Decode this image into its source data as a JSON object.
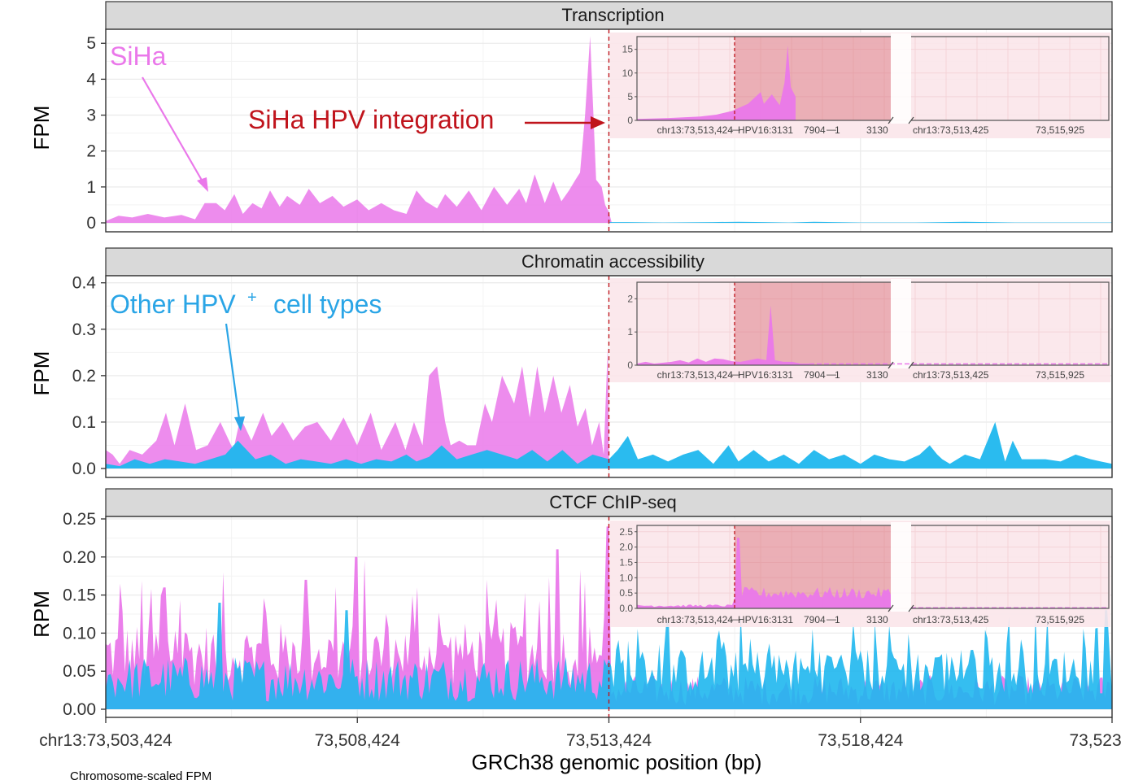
{
  "chart_data": {
    "type": "area",
    "x_axis": {
      "label": "GRCh38 genomic position (bp)",
      "range": [
        73503424,
        73523424
      ],
      "ticks": [
        73503424,
        73508424,
        73513424,
        73518424,
        73523424
      ],
      "tick_labels": [
        "chr13:73,503,424",
        "73,508,424",
        "73,513,424",
        "73,518,424",
        "73,523,424"
      ]
    },
    "integration_site": 73513424,
    "colors": {
      "SiHa": "#ea78ea",
      "Other": "#1fb7ee",
      "integration": "#c0141c",
      "inset_band": "#d86a76"
    },
    "groups": [
      "SiHa",
      "Other HPV+ cell types"
    ],
    "panels": [
      {
        "id": "transcription",
        "title": "Transcription",
        "ylabel": "FPM",
        "ylim": [
          0,
          5.3
        ],
        "yticks": [
          0,
          1,
          2,
          3,
          4,
          5
        ],
        "ytick_labels": [
          "0",
          "1",
          "2",
          "3",
          "4",
          "5"
        ],
        "annotation_siha": "SiHa",
        "annotation_integration": "SiHa HPV integration",
        "series": [
          {
            "name": "SiHa",
            "color": "#ea78ea",
            "x": [
              73503424,
              73503680,
              73503950,
              73504260,
              73504590,
              73504930,
              73505200,
              73505390,
              73505620,
              73505790,
              73505980,
              73506150,
              73506340,
              73506520,
              73506690,
              73506880,
              73507030,
              73507280,
              73507460,
              73507680,
              73507930,
              73508150,
              73508420,
              73508650,
              73508900,
              73509150,
              73509400,
              73509600,
              73509780,
              73510010,
              73510170,
              73510400,
              73510640,
              73510890,
              73511140,
              73511400,
              73511640,
              73511780,
              73511950,
              73512150,
              73512320,
              73512480,
              73512630,
              73512760,
              73512850,
              73512950,
              73513050,
              73513170,
              73513280,
              73513350,
              73513424,
              73513480
            ],
            "y": [
              0.05,
              0.2,
              0.15,
              0.25,
              0.15,
              0.22,
              0.1,
              0.55,
              0.55,
              0.35,
              0.8,
              0.25,
              0.55,
              0.4,
              0.9,
              0.45,
              0.75,
              0.5,
              0.95,
              0.55,
              0.75,
              0.45,
              0.65,
              0.35,
              0.55,
              0.35,
              0.25,
              0.9,
              0.6,
              0.4,
              0.8,
              0.45,
              0.9,
              0.35,
              1.0,
              0.5,
              0.95,
              0.55,
              1.35,
              0.55,
              1.15,
              0.6,
              0.9,
              1.2,
              1.4,
              3.0,
              5.2,
              1.2,
              1.0,
              0.5,
              0.3,
              0
            ]
          },
          {
            "name": "Other HPV+ cell types",
            "color": "#1fb7ee",
            "x": [
              73513424,
              73513800,
              73514500,
              73515500,
              73516000,
              73516500,
              73517000,
              73517500,
              73518424,
              73519500,
              73520500,
              73521500,
              73522500,
              73523424
            ],
            "y": [
              0.02,
              0.02,
              0.01,
              0.02,
              0.03,
              0.02,
              0.01,
              0.03,
              0.01,
              0.01,
              0.03,
              0.01,
              0.01,
              0.01
            ]
          }
        ],
        "inset": {
          "yticks": [
            0,
            5,
            10,
            15
          ],
          "ytick_labels": [
            "0",
            "5",
            "10",
            "15"
          ],
          "ylim": [
            0,
            17
          ],
          "xlabels": [
            "chr13:73,513,424",
            "HPV16:3131",
            "7904",
            "1",
            "3130",
            "chr13:73,513,425",
            "73,515,925"
          ],
          "siha_profile": [
            [
              0.0,
              0.3
            ],
            [
              0.2,
              0.5
            ],
            [
              0.4,
              0.8
            ],
            [
              0.5,
              1.2
            ],
            [
              0.6,
              2.0
            ],
            [
              0.7,
              3.5
            ],
            [
              0.78,
              6.0
            ],
            [
              0.8,
              3.5
            ],
            [
              0.85,
              5.5
            ],
            [
              0.9,
              3.2
            ],
            [
              0.93,
              8.0
            ],
            [
              0.95,
              15.8
            ],
            [
              0.97,
              7.0
            ],
            [
              1.0,
              5.0
            ]
          ]
        }
      },
      {
        "id": "chromatin",
        "title": "Chromatin accessibility",
        "ylabel": "FPM",
        "ylim": [
          0,
          0.41
        ],
        "yticks": [
          0,
          0.1,
          0.2,
          0.3,
          0.4
        ],
        "ytick_labels": [
          "0.0",
          "0.1",
          "0.2",
          "0.3",
          "0.4"
        ],
        "annotation_other": "Other HPV",
        "annotation_other_sup": "+",
        "annotation_other_tail": "cell types",
        "series": [
          {
            "name": "SiHa",
            "color": "#ea78ea",
            "x": [
              73503424,
              73503560,
              73503700,
              73503900,
              73504150,
              73504430,
              73504620,
              73504790,
              73505000,
              73505220,
              73505450,
              73505700,
              73505960,
              73506100,
              73506320,
              73506550,
              73506720,
              73506940,
              73507150,
              73507380,
              73507630,
              73507900,
              73508150,
              73508420,
              73508690,
              73508900,
              73509180,
              73509380,
              73509550,
              73509720,
              73509850,
              73510010,
              73510170,
              73510280,
              73510450,
              73510610,
              73510780,
              73510960,
              73511100,
              73511300,
              73511540,
              73511700,
              73511850,
              73512000,
              73512150,
              73512320,
              73512480,
              73512650,
              73512800,
              73512960,
              73513090,
              73513230,
              73513320,
              73513400,
              73513424
            ],
            "y": [
              0.04,
              0.03,
              0.01,
              0.04,
              0.03,
              0.06,
              0.12,
              0.05,
              0.14,
              0.04,
              0.05,
              0.1,
              0.04,
              0.11,
              0.06,
              0.12,
              0.07,
              0.1,
              0.06,
              0.09,
              0.1,
              0.06,
              0.11,
              0.05,
              0.12,
              0.04,
              0.1,
              0.04,
              0.1,
              0.05,
              0.2,
              0.22,
              0.1,
              0.05,
              0.06,
              0.05,
              0.05,
              0.14,
              0.1,
              0.2,
              0.14,
              0.22,
              0.11,
              0.22,
              0.12,
              0.2,
              0.12,
              0.18,
              0.09,
              0.13,
              0.05,
              0.1,
              0.03,
              0.26,
              0.0
            ]
          },
          {
            "name": "Other HPV+ cell types",
            "color": "#1fb7ee",
            "x": [
              73503424,
              73503700,
              73504000,
              73504300,
              73504600,
              73504900,
              73505200,
              73505500,
              73505800,
              73506050,
              73506400,
              73506700,
              73507000,
              73507300,
              73507600,
              73507900,
              73508200,
              73508500,
              73508800,
              73509100,
              73509400,
              73509600,
              73509850,
              73510100,
              73510400,
              73510700,
              73511000,
              73511300,
              73511600,
              73511900,
              73512200,
              73512500,
              73512800,
              73513100,
              73513424,
              73513600,
              73513800,
              73514000,
              73514300,
              73514600,
              73514900,
              73515200,
              73515500,
              73515800,
              73516000,
              73516300,
              73516600,
              73516900,
              73517200,
              73517500,
              73517800,
              73518100,
              73518424,
              73518700,
              73519000,
              73519300,
              73519600,
              73519800,
              73519950,
              73520050,
              73520200,
              73520500,
              73520800,
              73521100,
              73521300,
              73521450,
              73521540,
              73521630,
              73521800,
              73522100,
              73522400,
              73522700,
              73523000,
              73523200,
              73523424
            ],
            "y": [
              0.01,
              0.005,
              0.02,
              0.01,
              0.02,
              0.015,
              0.01,
              0.02,
              0.03,
              0.06,
              0.02,
              0.03,
              0.01,
              0.02,
              0.015,
              0.01,
              0.02,
              0.01,
              0.02,
              0.015,
              0.03,
              0.015,
              0.025,
              0.05,
              0.02,
              0.03,
              0.04,
              0.03,
              0.02,
              0.04,
              0.015,
              0.04,
              0.01,
              0.03,
              0.02,
              0.04,
              0.07,
              0.02,
              0.03,
              0.015,
              0.03,
              0.04,
              0.01,
              0.05,
              0.015,
              0.04,
              0.015,
              0.03,
              0.01,
              0.04,
              0.02,
              0.03,
              0.01,
              0.03,
              0.02,
              0.015,
              0.03,
              0.05,
              0.03,
              0.02,
              0.01,
              0.03,
              0.02,
              0.1,
              0.015,
              0.06,
              0.04,
              0.02,
              0.02,
              0.02,
              0.015,
              0.03,
              0.02,
              0.015,
              0.01
            ]
          }
        ],
        "inset": {
          "yticks": [
            0,
            1,
            2
          ],
          "ytick_labels": [
            "0",
            "1",
            "2"
          ],
          "ylim": [
            0,
            2.4
          ],
          "xlabels": [
            "chr13:73,513,424",
            "HPV16:3131",
            "7904",
            "1",
            "3130",
            "chr13:73,513,425",
            "73,515,925"
          ],
          "siha_profile": [
            [
              0.0,
              0.05
            ],
            [
              0.1,
              0.1
            ],
            [
              0.2,
              0.05
            ],
            [
              0.4,
              0.1
            ],
            [
              0.5,
              0.15
            ],
            [
              0.6,
              0.08
            ],
            [
              0.7,
              0.2
            ],
            [
              0.8,
              0.1
            ],
            [
              0.9,
              0.2
            ],
            [
              1.0,
              0.18
            ],
            [
              1.1,
              0.12
            ],
            [
              1.2,
              0.1
            ],
            [
              1.3,
              0.15
            ],
            [
              1.4,
              0.2
            ],
            [
              1.5,
              0.15
            ],
            [
              1.55,
              1.8
            ],
            [
              1.6,
              0.15
            ],
            [
              1.7,
              0.1
            ],
            [
              1.8,
              0.1
            ],
            [
              1.9,
              0.05
            ],
            [
              2.0,
              0.05
            ]
          ]
        }
      },
      {
        "id": "ctcf",
        "title": "CTCF ChIP-seq",
        "ylabel": "RPM",
        "ylim": [
          0,
          0.25
        ],
        "yticks": [
          0,
          0.05,
          0.1,
          0.15,
          0.2,
          0.25
        ],
        "ytick_labels": [
          "0.00",
          "0.05",
          "0.10",
          "0.15",
          "0.20",
          "0.25"
        ],
        "series": [
          {
            "name": "SiHa",
            "color": "#ea78ea",
            "x_range": [
              73503424,
              73523424
            ],
            "typical_range": [
              0.03,
              0.2
            ],
            "peaks": [
              [
                73504600,
                0.16
              ],
              [
                73505750,
                0.18
              ],
              [
                73507400,
                0.17
              ],
              [
                73508400,
                0.2
              ],
              [
                73511000,
                0.17
              ],
              [
                73512400,
                0.21
              ],
              [
                73513400,
                0.24
              ]
            ]
          },
          {
            "name": "Other HPV+ cell types",
            "color": "#1fb7ee",
            "x_range": [
              73503424,
              73523424
            ],
            "typical_range": [
              0.02,
              0.13
            ],
            "peaks": [
              [
                73505700,
                0.14
              ],
              [
                73508200,
                0.13
              ],
              [
                73513800,
                0.09
              ],
              [
                73519000,
                0.11
              ],
              [
                73523300,
                0.13
              ]
            ]
          }
        ],
        "inset": {
          "yticks": [
            0,
            0.5,
            1.0,
            1.5,
            2.0,
            2.5
          ],
          "ytick_labels": [
            "0.0",
            "0.5",
            "1.0",
            "1.5",
            "2.0",
            "2.5"
          ],
          "ylim": [
            0,
            2.6
          ],
          "xlabels": [
            "chr13:73,513,424",
            "HPV16:3131",
            "7904",
            "1",
            "3130",
            "chr13:73,513,425",
            "73,515,925"
          ]
        }
      }
    ],
    "footer": "Chromosome-scaled FPM"
  }
}
